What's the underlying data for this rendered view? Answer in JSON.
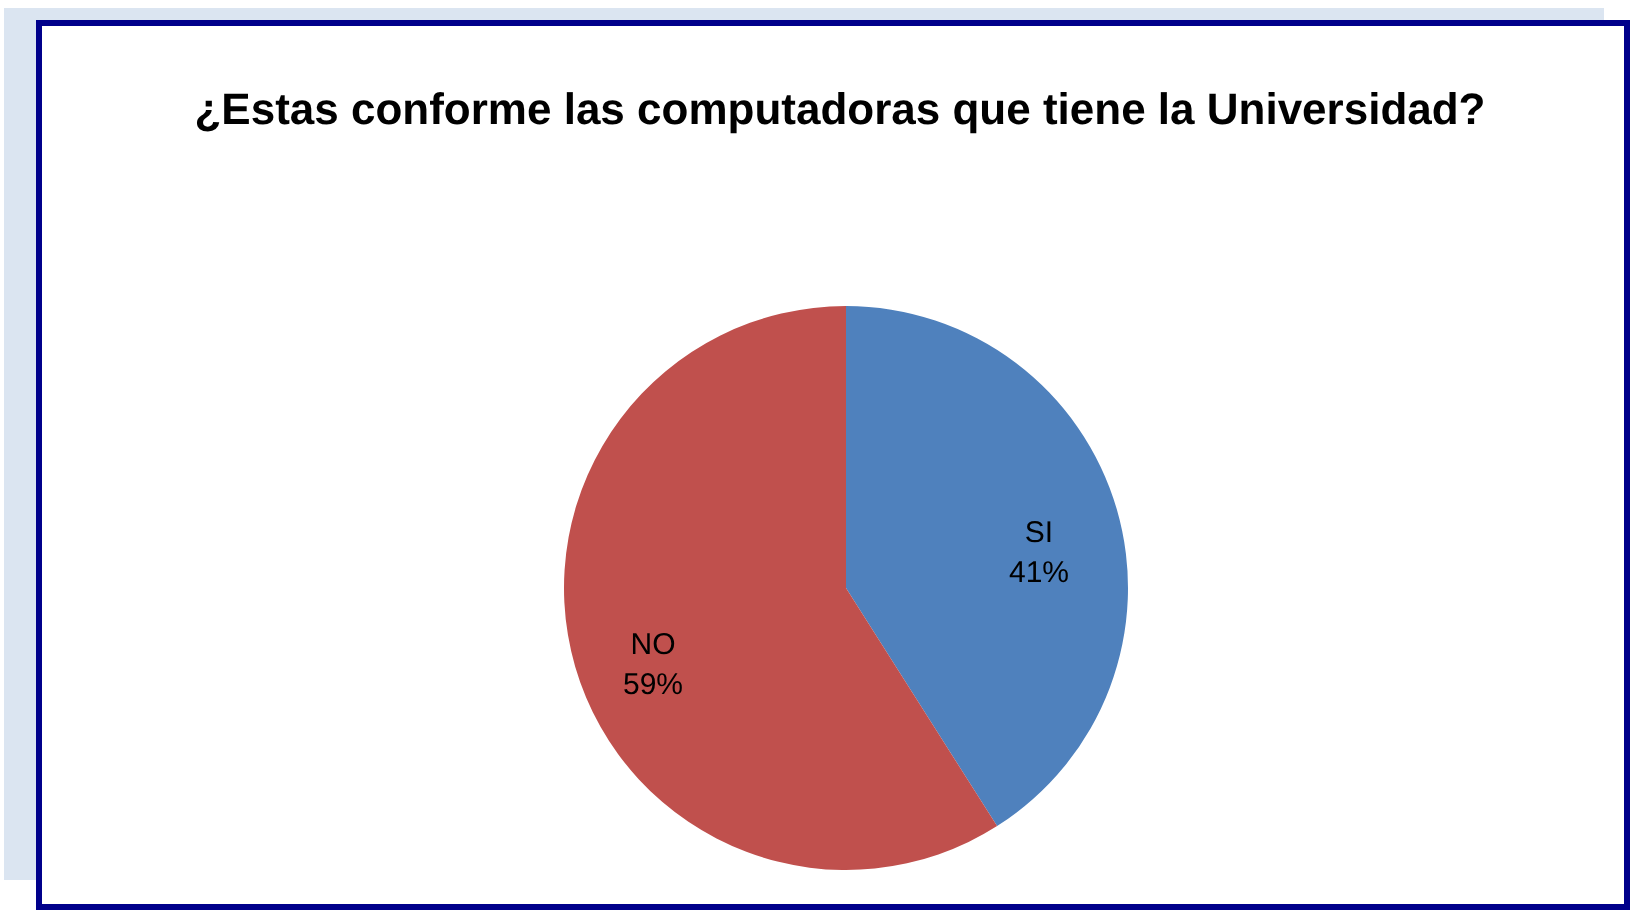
{
  "chart_data": {
    "type": "pie",
    "title": "¿Estas conforme las computadoras que tiene la Universidad?",
    "categories": [
      "SI",
      "NO"
    ],
    "values": [
      41,
      59
    ],
    "colors": [
      "#4f81bd",
      "#c0504d"
    ],
    "value_labels": [
      "41%",
      "59%"
    ]
  }
}
